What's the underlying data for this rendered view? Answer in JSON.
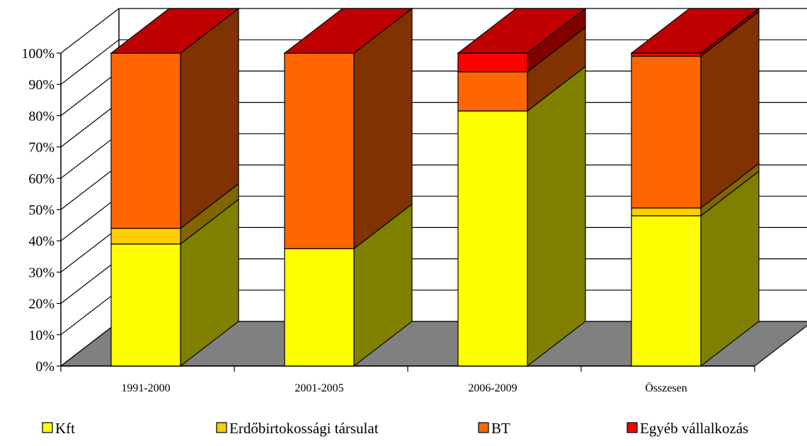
{
  "chart_data": {
    "type": "bar",
    "stacked": true,
    "percent_stacked": true,
    "three_d": true,
    "categories": [
      "1991-2000",
      "2001-2005",
      "2006-2009",
      "Összesen"
    ],
    "series": [
      {
        "name": "Kft",
        "values": [
          39,
          37.5,
          81.5,
          48
        ],
        "color": "#FFFF00",
        "side_color": "#808000"
      },
      {
        "name": "Erdőbirtokossági társulat",
        "values": [
          5,
          0,
          0,
          2.5
        ],
        "color": "#FFCC00",
        "side_color": "#806600"
      },
      {
        "name": "BT",
        "values": [
          56,
          62.5,
          12.5,
          48.5
        ],
        "color": "#FF6600",
        "side_color": "#803300"
      },
      {
        "name": "Egyéb vállalkozás",
        "values": [
          0,
          0,
          6,
          1
        ],
        "color": "#FF0000",
        "side_color": "#800000"
      }
    ],
    "top_color": "#C00000",
    "floor_color": "#808080",
    "ylim": [
      0,
      100
    ],
    "yticks": [
      "0%",
      "10%",
      "20%",
      "30%",
      "40%",
      "50%",
      "60%",
      "70%",
      "80%",
      "90%",
      "100%"
    ],
    "grid": true,
    "legend_position": "bottom"
  }
}
